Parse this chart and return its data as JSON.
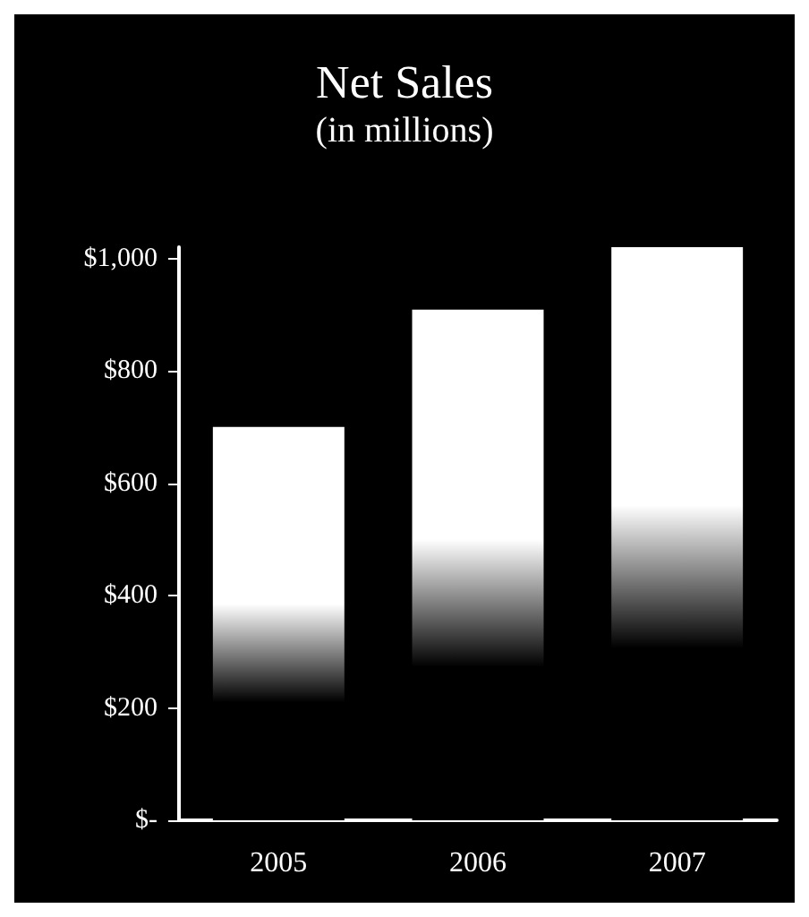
{
  "chart_data": {
    "type": "bar",
    "title": "Net Sales",
    "subtitle": "(in millions)",
    "categories": [
      "2005",
      "2006",
      "2007"
    ],
    "values": [
      700,
      909,
      1020
    ],
    "color": "#ffffff",
    "ylim": [
      0,
      1020
    ],
    "yticks": [
      {
        "value": 0,
        "label": "$-"
      },
      {
        "value": 200,
        "label": "$200"
      },
      {
        "value": 400,
        "label": "$400"
      },
      {
        "value": 600,
        "label": "$600"
      },
      {
        "value": 800,
        "label": "$800"
      },
      {
        "value": 1000,
        "label": "$1,000"
      }
    ],
    "grid": false
  }
}
